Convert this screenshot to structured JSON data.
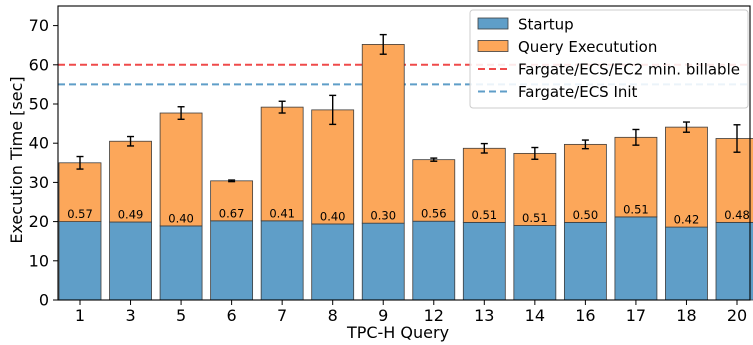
{
  "chart_data": {
    "type": "bar",
    "stacked": true,
    "xlabel": "TPC-H Query",
    "ylabel": "Execution Time [sec]",
    "ylim": [
      0,
      75
    ],
    "yticks": [
      0,
      10,
      20,
      30,
      40,
      50,
      60,
      70
    ],
    "categories": [
      "1",
      "3",
      "5",
      "6",
      "7",
      "8",
      "9",
      "12",
      "13",
      "14",
      "16",
      "17",
      "18",
      "20"
    ],
    "series": [
      {
        "name": "Startup",
        "color": "#5f9ec8",
        "values": [
          20.0,
          19.9,
          18.9,
          20.2,
          20.2,
          19.4,
          19.6,
          20.1,
          19.8,
          19.0,
          19.8,
          21.2,
          18.6,
          19.8
        ]
      },
      {
        "name": "Query Executution",
        "color": "#fca75a",
        "values": [
          15.0,
          20.6,
          28.8,
          10.2,
          29.0,
          29.1,
          45.6,
          15.7,
          18.9,
          18.4,
          19.9,
          20.3,
          25.5,
          21.4
        ]
      }
    ],
    "error_bars": [
      1.6,
      1.2,
      1.6,
      0.2,
      1.5,
      3.7,
      2.5,
      0.4,
      1.2,
      1.5,
      1.1,
      2.0,
      1.3,
      3.5
    ],
    "bar_labels": [
      "0.57",
      "0.49",
      "0.40",
      "0.67",
      "0.41",
      "0.40",
      "0.30",
      "0.56",
      "0.51",
      "0.51",
      "0.50",
      "0.51",
      "0.42",
      "0.48"
    ],
    "hlines": [
      {
        "name": "Fargate/ECS/EC2 min. billable",
        "value": 60,
        "color": "#ef4a4a",
        "style": "dashed"
      },
      {
        "name": "Fargate/ECS Init",
        "value": 55,
        "color": "#5f9ec8",
        "style": "dashed"
      }
    ],
    "legend": {
      "placement": "top-right",
      "entries": [
        "Startup",
        "Query Executution",
        "Fargate/ECS/EC2 min. billable",
        "Fargate/ECS Init"
      ]
    },
    "grid": false
  }
}
